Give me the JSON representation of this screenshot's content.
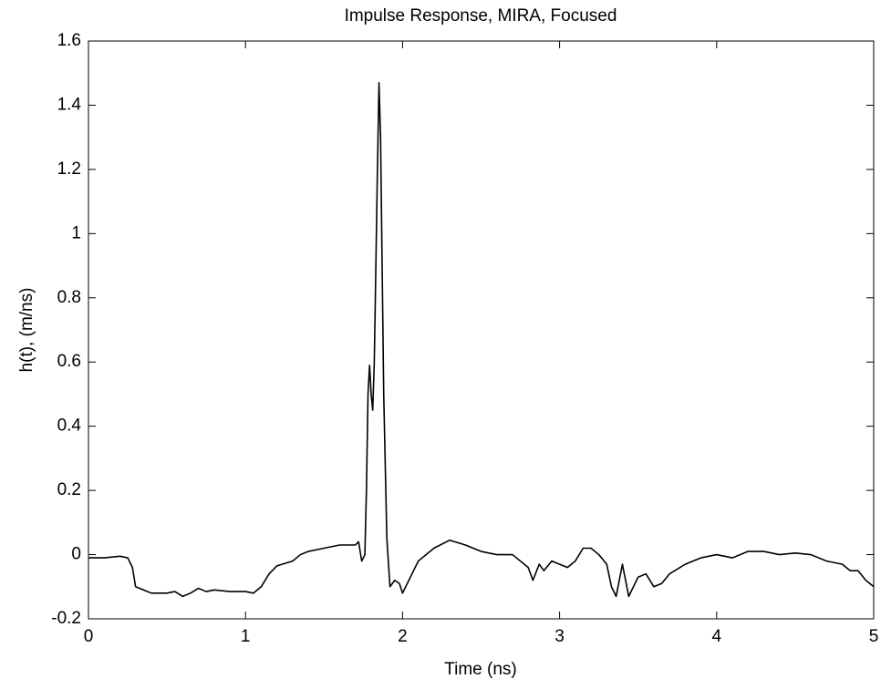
{
  "chart_data": {
    "type": "line",
    "title": "Impulse Response, MIRA, Focused",
    "x_label": "Time (ns)",
    "y_label": "h(t), (m/ns)",
    "xlim": [
      0,
      5
    ],
    "ylim": [
      -0.2,
      1.6
    ],
    "xticks": [
      0,
      1,
      2,
      3,
      4,
      5
    ],
    "yticks": [
      -0.2,
      0,
      0.2,
      0.4,
      0.6,
      0.8,
      1,
      1.2,
      1.4,
      1.6
    ],
    "grid": false,
    "series": [
      {
        "color": "#000000",
        "x": [
          0,
          0.1,
          0.2,
          0.25,
          0.28,
          0.3,
          0.35,
          0.4,
          0.5,
          0.55,
          0.6,
          0.65,
          0.7,
          0.75,
          0.8,
          0.9,
          1.0,
          1.05,
          1.1,
          1.15,
          1.2,
          1.3,
          1.35,
          1.4,
          1.5,
          1.6,
          1.65,
          1.7,
          1.72,
          1.74,
          1.76,
          1.77,
          1.78,
          1.79,
          1.8,
          1.81,
          1.82,
          1.83,
          1.84,
          1.85,
          1.86,
          1.87,
          1.88,
          1.9,
          1.92,
          1.95,
          1.98,
          2.0,
          2.05,
          2.1,
          2.2,
          2.3,
          2.4,
          2.5,
          2.6,
          2.7,
          2.8,
          2.83,
          2.87,
          2.9,
          2.95,
          3.0,
          3.05,
          3.1,
          3.15,
          3.2,
          3.25,
          3.3,
          3.33,
          3.36,
          3.4,
          3.44,
          3.5,
          3.55,
          3.6,
          3.65,
          3.7,
          3.8,
          3.9,
          4.0,
          4.1,
          4.2,
          4.3,
          4.4,
          4.5,
          4.6,
          4.7,
          4.8,
          4.85,
          4.9,
          4.95,
          5.0
        ],
        "values": [
          -0.01,
          -0.01,
          -0.005,
          -0.01,
          -0.04,
          -0.1,
          -0.11,
          -0.12,
          -0.12,
          -0.115,
          -0.13,
          -0.12,
          -0.105,
          -0.115,
          -0.11,
          -0.115,
          -0.115,
          -0.12,
          -0.1,
          -0.06,
          -0.035,
          -0.02,
          0.0,
          0.01,
          0.02,
          0.03,
          0.03,
          0.03,
          0.04,
          -0.02,
          0.0,
          0.2,
          0.5,
          0.59,
          0.5,
          0.45,
          0.6,
          0.9,
          1.2,
          1.47,
          1.3,
          0.9,
          0.5,
          0.05,
          -0.1,
          -0.08,
          -0.09,
          -0.12,
          -0.07,
          -0.02,
          0.02,
          0.045,
          0.03,
          0.01,
          0.0,
          0.0,
          -0.04,
          -0.08,
          -0.03,
          -0.05,
          -0.02,
          -0.03,
          -0.04,
          -0.02,
          0.02,
          0.02,
          0.0,
          -0.03,
          -0.1,
          -0.13,
          -0.03,
          -0.13,
          -0.07,
          -0.06,
          -0.1,
          -0.09,
          -0.06,
          -0.03,
          -0.01,
          0.0,
          -0.01,
          0.01,
          0.01,
          0.0,
          0.005,
          0.0,
          -0.02,
          -0.03,
          -0.05,
          -0.05,
          -0.08,
          -0.1
        ]
      }
    ]
  }
}
